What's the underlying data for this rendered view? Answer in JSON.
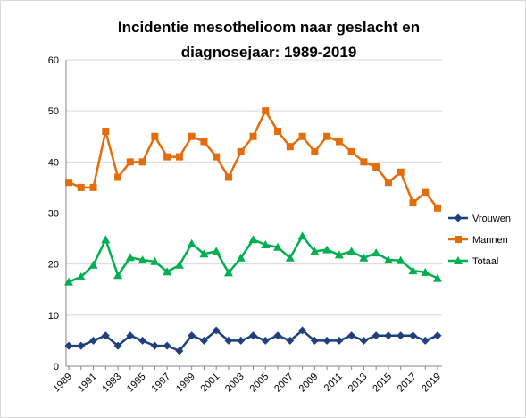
{
  "chart_data": {
    "type": "line",
    "title": "Incidentie mesothelioom  naar geslacht en",
    "subtitle": "diagnosejaar:  1989-2019",
    "xlabel": "",
    "ylabel": "",
    "ylim": [
      0,
      60
    ],
    "yticks": [
      0,
      10,
      20,
      30,
      40,
      50,
      60
    ],
    "x": [
      1989,
      1990,
      1991,
      1992,
      1993,
      1994,
      1995,
      1996,
      1997,
      1998,
      1999,
      2000,
      2001,
      2002,
      2003,
      2004,
      2005,
      2006,
      2007,
      2008,
      2009,
      2010,
      2011,
      2012,
      2013,
      2014,
      2015,
      2016,
      2017,
      2018,
      2019
    ],
    "xtick_labels": [
      "1989",
      "1991",
      "1993",
      "1995",
      "1997",
      "1999",
      "2001",
      "2003",
      "2005",
      "2007",
      "2009",
      "2011",
      "2013",
      "2015",
      "2017",
      "2019"
    ],
    "grid": "horizontal",
    "legend_position": "right",
    "series": [
      {
        "name": "Vrouwen",
        "color": "#1f3f7f",
        "marker": "diamond",
        "values": [
          4,
          4,
          5,
          6,
          4,
          6,
          5,
          4,
          4,
          3,
          6,
          5,
          7,
          5,
          5,
          6,
          5,
          6,
          5,
          7,
          5,
          5,
          5,
          6,
          5,
          6,
          6,
          6,
          6,
          5,
          6
        ]
      },
      {
        "name": "Mannen",
        "color": "#e46c0a",
        "marker": "square",
        "values": [
          36,
          35,
          35,
          46,
          37,
          40,
          40,
          45,
          41,
          41,
          45,
          44,
          41,
          37,
          42,
          45,
          50,
          46,
          43,
          45,
          42,
          45,
          44,
          42,
          40,
          39,
          36,
          38,
          32,
          34,
          31
        ]
      },
      {
        "name": "Totaal",
        "color": "#00b050",
        "marker": "triangle",
        "values": [
          16.5,
          17.5,
          19.8,
          24.8,
          17.8,
          21.3,
          20.8,
          20.5,
          18.5,
          19.8,
          24,
          22,
          22.5,
          18.3,
          21.2,
          24.8,
          23.8,
          23.3,
          21.2,
          25.5,
          22.5,
          22.8,
          21.8,
          22.5,
          21.2,
          22.2,
          20.8,
          20.7,
          18.7,
          18.4,
          17.2
        ]
      }
    ]
  }
}
